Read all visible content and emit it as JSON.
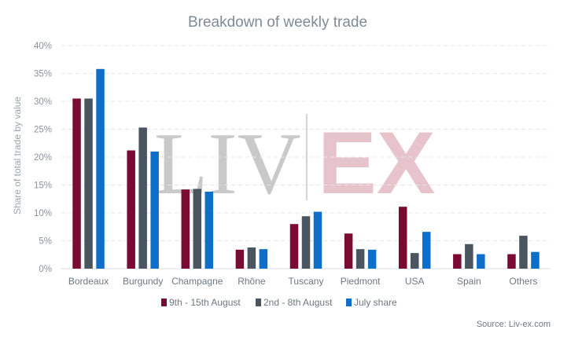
{
  "chart_data": {
    "type": "bar",
    "title": "Breakdown of weekly trade",
    "ylabel": "Share of total trade by value",
    "xlabel": "",
    "ylim": [
      0,
      40
    ],
    "yticks": [
      "0%",
      "5%",
      "10%",
      "15%",
      "20%",
      "25%",
      "30%",
      "35%",
      "40%"
    ],
    "ytick_values": [
      0,
      5,
      10,
      15,
      20,
      25,
      30,
      35,
      40
    ],
    "grid": true,
    "legend_position": "bottom",
    "categories": [
      "Bordeaux",
      "Burgundy",
      "Champagne",
      "Rhône",
      "Tuscany",
      "Piedmont",
      "USA",
      "Spain",
      "Others"
    ],
    "series": [
      {
        "name": "9th - 15th August",
        "color": "#7b0a33",
        "values": [
          30.5,
          21.2,
          14.2,
          3.4,
          8.0,
          6.3,
          11.1,
          2.6,
          2.6
        ]
      },
      {
        "name": "2nd - 8th August",
        "color": "#4a5560",
        "values": [
          30.5,
          25.3,
          14.3,
          3.8,
          9.4,
          3.5,
          2.8,
          4.4,
          5.9
        ]
      },
      {
        "name": "July share",
        "color": "#0d6fc9",
        "values": [
          35.8,
          21.0,
          13.8,
          3.5,
          10.2,
          3.4,
          6.6,
          2.6,
          3.0
        ]
      }
    ],
    "source": "Source: Liv-ex.com",
    "watermark": {
      "left": "LIV",
      "right": "EX"
    }
  }
}
